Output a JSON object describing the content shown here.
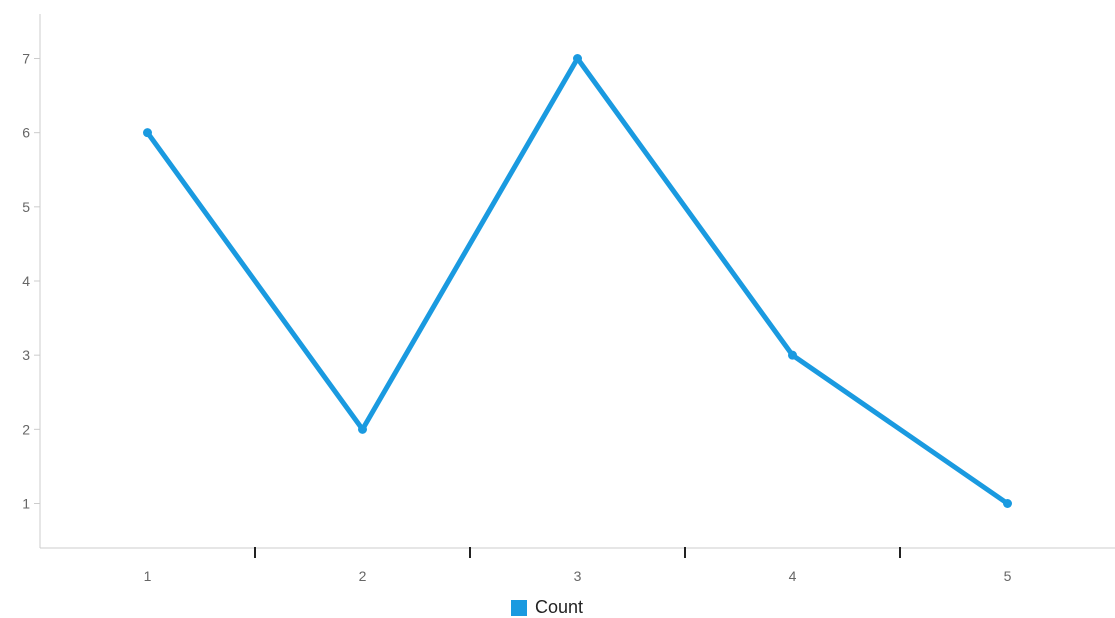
{
  "chart_data": {
    "type": "line",
    "x": [
      1,
      2,
      3,
      4,
      5
    ],
    "series": [
      {
        "name": "Count",
        "values": [
          6,
          2,
          7,
          3,
          1
        ],
        "color": "#1a9ae0"
      }
    ],
    "xlim": [
      0.5,
      5.5
    ],
    "ylim": [
      0.4,
      7.6
    ],
    "y_ticks": [
      1,
      2,
      3,
      4,
      5,
      6,
      7
    ],
    "x_ticks": [
      1,
      2,
      3,
      4,
      5
    ],
    "grid": false,
    "legend_position": "bottom-center",
    "title": "",
    "xlabel": "",
    "ylabel": ""
  },
  "legend": {
    "label": "Count",
    "color": "#1a9ae0"
  },
  "colors": {
    "axis": "#cccccc",
    "tick_mark": "#222222",
    "tick_label": "#666666"
  }
}
